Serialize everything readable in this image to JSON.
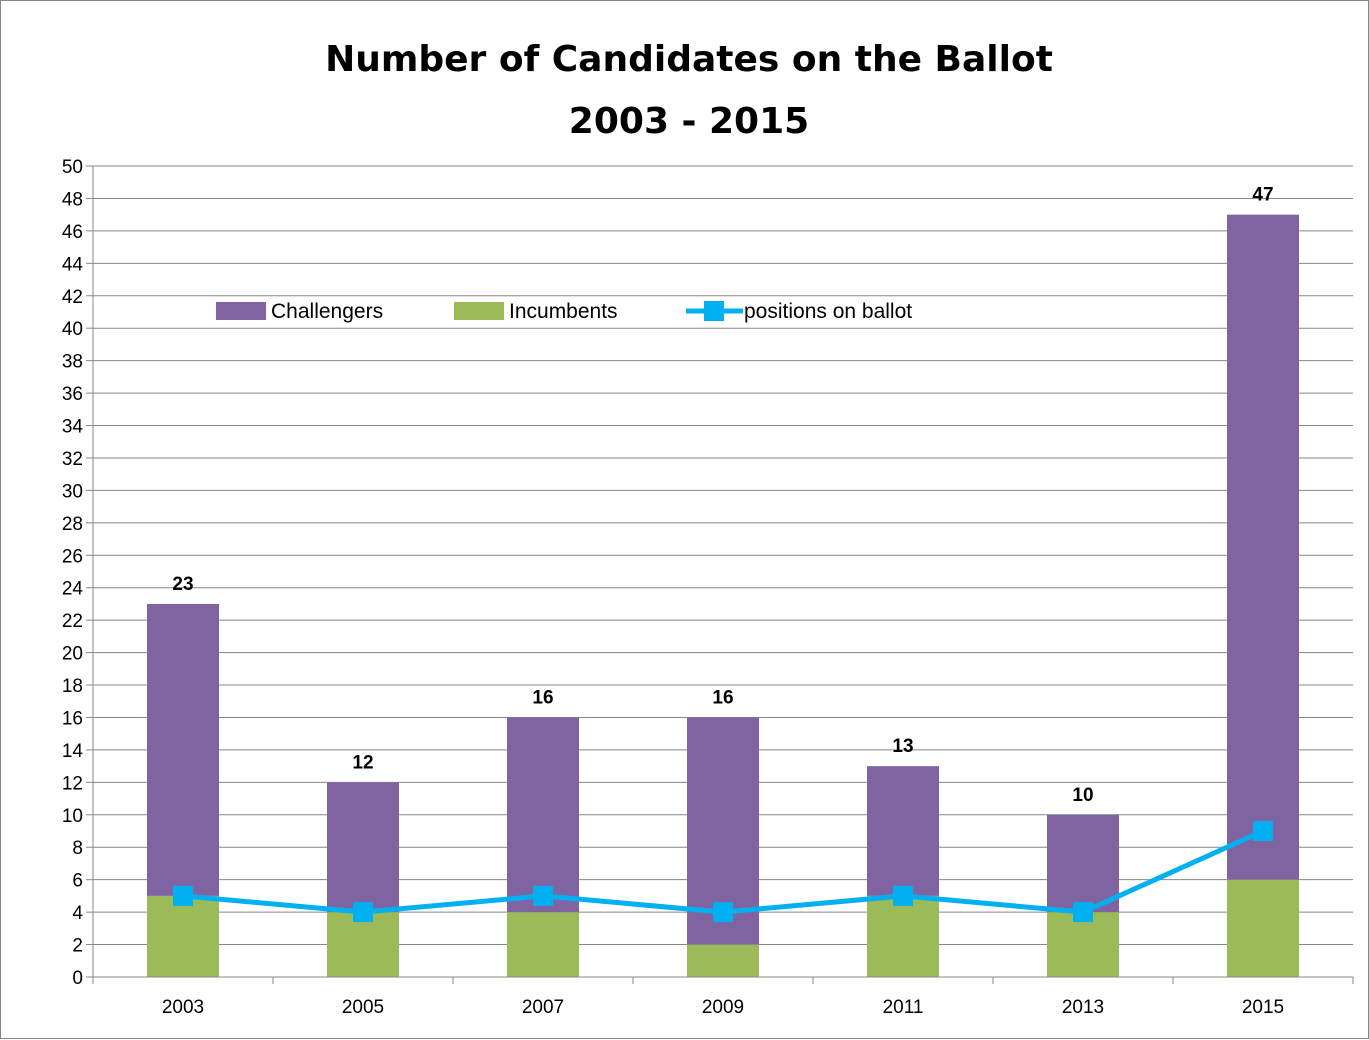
{
  "chart_data": {
    "type": "bar",
    "stacked": true,
    "title": [
      "Number of Candidates on the Ballot",
      "2003 - 2015"
    ],
    "categories": [
      "2003",
      "2005",
      "2007",
      "2009",
      "2011",
      "2013",
      "2015"
    ],
    "series": [
      {
        "name": "Challengers",
        "type": "bar",
        "values": [
          18,
          8,
          12,
          14,
          8,
          6,
          41
        ],
        "color": "#8064A2"
      },
      {
        "name": "Incumbents",
        "type": "bar",
        "values": [
          5,
          4,
          4,
          2,
          5,
          4,
          6
        ],
        "color": "#9BBB59"
      },
      {
        "name": "positions on ballot",
        "type": "line",
        "values": [
          5,
          4,
          5,
          4,
          5,
          4,
          9
        ],
        "color": "#00B0F0"
      }
    ],
    "totals": [
      "23",
      "12",
      "16",
      "16",
      "13",
      "10",
      "47"
    ],
    "ylim": [
      0,
      50
    ],
    "ytick_step": 2,
    "xlabel": "",
    "ylabel": "",
    "grid": true,
    "legend_position": "top-left, inside plot"
  }
}
